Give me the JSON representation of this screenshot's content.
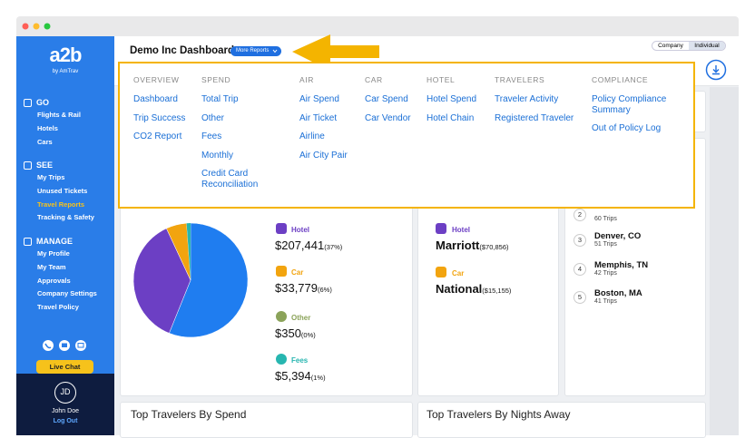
{
  "sidebar": {
    "logo": "a2b",
    "logo_sub": "by AmTrav",
    "sections": [
      {
        "title": "GO",
        "items": [
          "Flights & Rail",
          "Hotels",
          "Cars"
        ]
      },
      {
        "title": "SEE",
        "items": [
          "My Trips",
          "Unused Tickets",
          "Travel Reports",
          "Tracking & Safety"
        ]
      },
      {
        "title": "MANAGE",
        "items": [
          "My Profile",
          "My Team",
          "Approvals",
          "Company Settings",
          "Travel Policy"
        ]
      }
    ],
    "live_chat": "Live Chat",
    "user": {
      "initials": "JD",
      "name": "John Doe",
      "logout": "Log Out"
    }
  },
  "header": {
    "title": "Demo Inc Dashboard",
    "more_reports": "More Reports",
    "toggle": [
      "Company",
      "Individual"
    ]
  },
  "menu": {
    "columns": [
      {
        "heading": "OVERVIEW",
        "items": [
          "Dashboard",
          "Trip Success",
          "CO2 Report"
        ]
      },
      {
        "heading": "SPEND",
        "items": [
          "Total Trip",
          "Other",
          "Fees",
          "Monthly",
          "Credit Card Reconciliation"
        ]
      },
      {
        "heading": "AIR",
        "items": [
          "Air Spend",
          "Air Ticket",
          "Airline",
          "Air City Pair"
        ]
      },
      {
        "heading": "CAR",
        "items": [
          "Car Spend",
          "Car Vendor"
        ]
      },
      {
        "heading": "HOTEL",
        "items": [
          "Hotel Spend",
          "Hotel Chain"
        ]
      },
      {
        "heading": "TRAVELERS",
        "items": [
          "Traveler Activity",
          "Registered Traveler"
        ]
      },
      {
        "heading": "COMPLIANCE",
        "items": [
          "Policy Compliance Summary",
          "Out of Policy Log"
        ]
      }
    ]
  },
  "spend_card": {
    "items": [
      {
        "label": "Hotel",
        "amount": "$207,441",
        "pct": "(37%)"
      },
      {
        "label": "Car",
        "amount": "$33,779",
        "pct": "(6%)"
      },
      {
        "label": "Other",
        "amount": "$350",
        "pct": "(0%)"
      },
      {
        "label": "Fees",
        "amount": "$5,394",
        "pct": "(1%)"
      }
    ]
  },
  "vendor_card": {
    "items": [
      {
        "label": "Hotel",
        "name": "Marriott",
        "amount": "($70,856)"
      },
      {
        "label": "Car",
        "name": "National",
        "amount": "($15,155)"
      }
    ]
  },
  "cities_card": {
    "items": [
      {
        "rank": 2,
        "trips": "60 Trips"
      },
      {
        "rank": 3,
        "name": "Denver, CO",
        "trips": "51 Trips"
      },
      {
        "rank": 4,
        "name": "Memphis, TN",
        "trips": "42 Trips"
      },
      {
        "rank": 5,
        "name": "Boston, MA",
        "trips": "41 Trips"
      }
    ]
  },
  "bottom": {
    "left": "Top Travelers By Spend",
    "right": "Top Travelers By Nights Away"
  }
}
